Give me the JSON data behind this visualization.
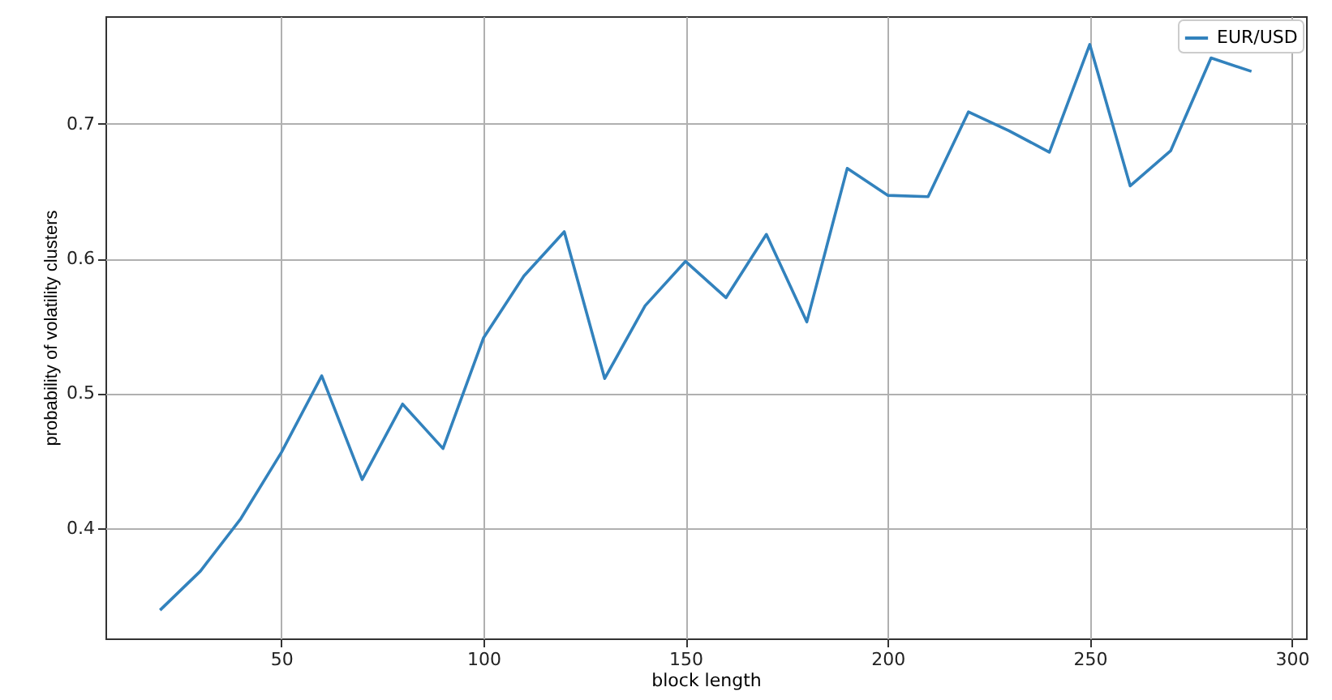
{
  "chart_data": {
    "type": "line",
    "xlabel": "block length",
    "ylabel": "probability of volatility clusters",
    "x": [
      20,
      30,
      40,
      50,
      60,
      70,
      80,
      90,
      100,
      110,
      120,
      130,
      140,
      150,
      160,
      170,
      180,
      190,
      200,
      210,
      220,
      230,
      240,
      250,
      260,
      270,
      280,
      290
    ],
    "series": [
      {
        "name": "EUR/USD",
        "color": "#3282bd",
        "values": [
          0.339,
          0.368,
          0.407,
          0.456,
          0.513,
          0.436,
          0.492,
          0.459,
          0.541,
          0.587,
          0.62,
          0.511,
          0.565,
          0.598,
          0.571,
          0.618,
          0.553,
          0.667,
          0.647,
          0.646,
          0.709,
          0.695,
          0.679,
          0.759,
          0.654,
          0.68,
          0.749,
          0.739
        ]
      }
    ],
    "xlim": [
      6.5,
      303.5
    ],
    "xticks": [
      50,
      100,
      150,
      200,
      250,
      300
    ],
    "ylim": [
      0.318,
      0.78
    ],
    "yticks": [
      0.4,
      0.5,
      0.6,
      0.7
    ],
    "grid": true,
    "legend": "top right",
    "line_style": "solid",
    "marker": "none"
  }
}
